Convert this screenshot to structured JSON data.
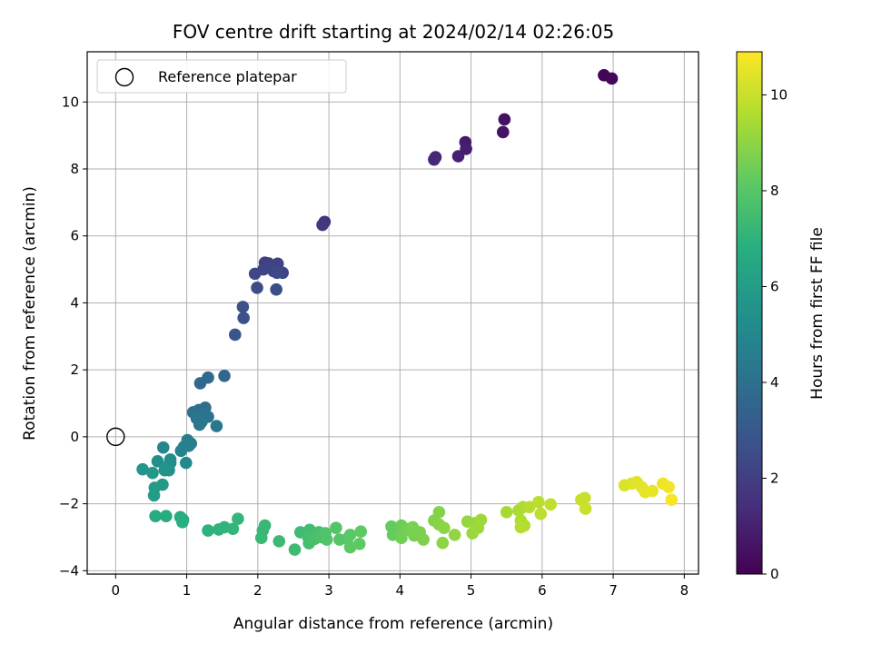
{
  "chart_data": {
    "type": "scatter",
    "title": "FOV centre drift starting at 2024/02/14 02:26:05",
    "xlabel": "Angular distance from reference (arcmin)",
    "ylabel": "Rotation from reference (arcmin)",
    "xlim": [
      -0.4,
      8.2
    ],
    "ylim": [
      -4.1,
      11.5
    ],
    "xticks": [
      0,
      1,
      2,
      3,
      4,
      5,
      6,
      7,
      8
    ],
    "yticks": [
      -4,
      -2,
      0,
      2,
      4,
      6,
      8,
      10
    ],
    "grid": true,
    "legend": {
      "placement": "top-left",
      "entries": [
        "Reference platepar"
      ]
    },
    "reference_point": {
      "name": "Reference platepar",
      "x": 0,
      "y": 0
    },
    "colorbar": {
      "label": "Hours from first FF file",
      "colormap": "viridis",
      "range": [
        0,
        10.9
      ],
      "ticks": [
        0,
        2,
        4,
        6,
        8,
        10
      ]
    },
    "points": [
      {
        "x": 6.87,
        "y": 10.8,
        "c": 0.1
      },
      {
        "x": 6.98,
        "y": 10.7,
        "c": 0.2
      },
      {
        "x": 5.47,
        "y": 9.48,
        "c": 0.5
      },
      {
        "x": 5.45,
        "y": 9.1,
        "c": 0.6
      },
      {
        "x": 4.92,
        "y": 8.8,
        "c": 0.8
      },
      {
        "x": 4.93,
        "y": 8.6,
        "c": 0.9
      },
      {
        "x": 4.82,
        "y": 8.38,
        "c": 1.0
      },
      {
        "x": 4.5,
        "y": 8.35,
        "c": 1.1
      },
      {
        "x": 4.48,
        "y": 8.28,
        "c": 1.2
      },
      {
        "x": 2.94,
        "y": 6.42,
        "c": 1.6
      },
      {
        "x": 2.91,
        "y": 6.33,
        "c": 1.7
      },
      {
        "x": 2.1,
        "y": 5.2,
        "c": 2.0
      },
      {
        "x": 2.15,
        "y": 5.18,
        "c": 2.05
      },
      {
        "x": 2.28,
        "y": 5.17,
        "c": 2.1
      },
      {
        "x": 2.17,
        "y": 5.1,
        "c": 2.15
      },
      {
        "x": 2.08,
        "y": 5.0,
        "c": 2.2
      },
      {
        "x": 2.22,
        "y": 4.95,
        "c": 2.25
      },
      {
        "x": 2.35,
        "y": 4.9,
        "c": 2.3
      },
      {
        "x": 1.96,
        "y": 4.87,
        "c": 2.35
      },
      {
        "x": 2.27,
        "y": 4.9,
        "c": 2.4
      },
      {
        "x": 1.99,
        "y": 4.45,
        "c": 2.5
      },
      {
        "x": 2.26,
        "y": 4.4,
        "c": 2.55
      },
      {
        "x": 1.79,
        "y": 3.88,
        "c": 2.65
      },
      {
        "x": 1.8,
        "y": 3.55,
        "c": 2.7
      },
      {
        "x": 1.68,
        "y": 3.05,
        "c": 2.85
      },
      {
        "x": 1.53,
        "y": 1.82,
        "c": 3.6
      },
      {
        "x": 1.3,
        "y": 1.77,
        "c": 3.65
      },
      {
        "x": 1.19,
        "y": 1.6,
        "c": 3.7
      },
      {
        "x": 1.26,
        "y": 0.87,
        "c": 3.9
      },
      {
        "x": 1.17,
        "y": 0.8,
        "c": 4.0
      },
      {
        "x": 1.09,
        "y": 0.73,
        "c": 4.05
      },
      {
        "x": 1.25,
        "y": 0.68,
        "c": 4.1
      },
      {
        "x": 1.3,
        "y": 0.6,
        "c": 4.15
      },
      {
        "x": 1.14,
        "y": 0.55,
        "c": 4.2
      },
      {
        "x": 1.21,
        "y": 0.45,
        "c": 4.25
      },
      {
        "x": 1.18,
        "y": 0.36,
        "c": 4.3
      },
      {
        "x": 1.42,
        "y": 0.32,
        "c": 4.35
      },
      {
        "x": 1.01,
        "y": -0.1,
        "c": 4.6
      },
      {
        "x": 1.06,
        "y": -0.2,
        "c": 4.65
      },
      {
        "x": 1.03,
        "y": -0.27,
        "c": 4.7
      },
      {
        "x": 0.96,
        "y": -0.3,
        "c": 4.75
      },
      {
        "x": 0.92,
        "y": -0.42,
        "c": 4.85
      },
      {
        "x": 0.67,
        "y": -0.32,
        "c": 5.0
      },
      {
        "x": 0.99,
        "y": -0.78,
        "c": 5.1
      },
      {
        "x": 0.77,
        "y": -0.68,
        "c": 5.2
      },
      {
        "x": 0.77,
        "y": -0.78,
        "c": 5.3
      },
      {
        "x": 0.59,
        "y": -0.73,
        "c": 5.4
      },
      {
        "x": 0.72,
        "y": -0.9,
        "c": 5.5
      },
      {
        "x": 0.75,
        "y": -1.0,
        "c": 5.55
      },
      {
        "x": 0.69,
        "y": -1.0,
        "c": 5.6
      },
      {
        "x": 0.38,
        "y": -0.97,
        "c": 5.7
      },
      {
        "x": 0.52,
        "y": -1.08,
        "c": 5.75
      },
      {
        "x": 0.66,
        "y": -1.43,
        "c": 5.85
      },
      {
        "x": 0.55,
        "y": -1.52,
        "c": 5.9
      },
      {
        "x": 0.54,
        "y": -1.75,
        "c": 6.0
      },
      {
        "x": 0.56,
        "y": -2.37,
        "c": 6.6
      },
      {
        "x": 0.71,
        "y": -2.37,
        "c": 6.65
      },
      {
        "x": 0.91,
        "y": -2.4,
        "c": 6.7
      },
      {
        "x": 0.95,
        "y": -2.48,
        "c": 6.75
      },
      {
        "x": 0.94,
        "y": -2.55,
        "c": 6.8
      },
      {
        "x": 1.3,
        "y": -2.8,
        "c": 6.95
      },
      {
        "x": 1.45,
        "y": -2.77,
        "c": 7.0
      },
      {
        "x": 1.53,
        "y": -2.7,
        "c": 7.05
      },
      {
        "x": 1.65,
        "y": -2.75,
        "c": 7.1
      },
      {
        "x": 1.72,
        "y": -2.45,
        "c": 7.15
      },
      {
        "x": 2.1,
        "y": -2.65,
        "c": 7.2
      },
      {
        "x": 2.07,
        "y": -2.8,
        "c": 7.25
      },
      {
        "x": 2.05,
        "y": -3.02,
        "c": 7.3
      },
      {
        "x": 2.3,
        "y": -3.12,
        "c": 7.35
      },
      {
        "x": 2.52,
        "y": -3.37,
        "c": 7.4
      },
      {
        "x": 2.6,
        "y": -2.85,
        "c": 7.45
      },
      {
        "x": 2.73,
        "y": -2.78,
        "c": 7.5
      },
      {
        "x": 2.71,
        "y": -3.0,
        "c": 7.55
      },
      {
        "x": 2.72,
        "y": -3.18,
        "c": 7.6
      },
      {
        "x": 2.86,
        "y": -2.85,
        "c": 7.65
      },
      {
        "x": 2.8,
        "y": -3.05,
        "c": 7.7
      },
      {
        "x": 2.9,
        "y": -3.0,
        "c": 7.75
      },
      {
        "x": 2.95,
        "y": -2.88,
        "c": 7.8
      },
      {
        "x": 2.97,
        "y": -3.07,
        "c": 7.85
      },
      {
        "x": 3.1,
        "y": -2.72,
        "c": 7.9
      },
      {
        "x": 3.15,
        "y": -3.07,
        "c": 7.95
      },
      {
        "x": 3.26,
        "y": -3.05,
        "c": 8.0
      },
      {
        "x": 3.3,
        "y": -2.93,
        "c": 8.05
      },
      {
        "x": 3.3,
        "y": -3.3,
        "c": 8.1
      },
      {
        "x": 3.43,
        "y": -3.2,
        "c": 8.15
      },
      {
        "x": 3.45,
        "y": -2.83,
        "c": 8.2
      },
      {
        "x": 3.88,
        "y": -2.68,
        "c": 8.25
      },
      {
        "x": 3.9,
        "y": -2.93,
        "c": 8.3
      },
      {
        "x": 4.0,
        "y": -2.73,
        "c": 8.35
      },
      {
        "x": 4.02,
        "y": -2.65,
        "c": 8.4
      },
      {
        "x": 4.06,
        "y": -2.8,
        "c": 8.45
      },
      {
        "x": 4.02,
        "y": -3.02,
        "c": 8.5
      },
      {
        "x": 4.12,
        "y": -2.75,
        "c": 8.55
      },
      {
        "x": 4.2,
        "y": -2.95,
        "c": 8.6
      },
      {
        "x": 4.18,
        "y": -2.7,
        "c": 8.65
      },
      {
        "x": 4.28,
        "y": -2.85,
        "c": 8.7
      },
      {
        "x": 4.33,
        "y": -3.07,
        "c": 8.75
      },
      {
        "x": 4.48,
        "y": -2.5,
        "c": 8.8
      },
      {
        "x": 4.55,
        "y": -2.25,
        "c": 8.85
      },
      {
        "x": 4.55,
        "y": -2.62,
        "c": 8.9
      },
      {
        "x": 4.62,
        "y": -2.72,
        "c": 8.95
      },
      {
        "x": 4.6,
        "y": -3.17,
        "c": 9.0
      },
      {
        "x": 4.77,
        "y": -2.93,
        "c": 9.05
      },
      {
        "x": 4.95,
        "y": -2.53,
        "c": 9.1
      },
      {
        "x": 5.05,
        "y": -2.58,
        "c": 9.15
      },
      {
        "x": 5.02,
        "y": -2.88,
        "c": 9.2
      },
      {
        "x": 5.1,
        "y": -2.72,
        "c": 9.25
      },
      {
        "x": 5.14,
        "y": -2.48,
        "c": 9.3
      },
      {
        "x": 5.5,
        "y": -2.25,
        "c": 9.4
      },
      {
        "x": 5.67,
        "y": -2.2,
        "c": 9.45
      },
      {
        "x": 5.73,
        "y": -2.1,
        "c": 9.5
      },
      {
        "x": 5.7,
        "y": -2.5,
        "c": 9.55
      },
      {
        "x": 5.75,
        "y": -2.65,
        "c": 9.6
      },
      {
        "x": 5.7,
        "y": -2.7,
        "c": 9.65
      },
      {
        "x": 5.82,
        "y": -2.1,
        "c": 9.7
      },
      {
        "x": 5.95,
        "y": -1.95,
        "c": 9.75
      },
      {
        "x": 5.98,
        "y": -2.3,
        "c": 9.8
      },
      {
        "x": 6.12,
        "y": -2.02,
        "c": 9.85
      },
      {
        "x": 6.55,
        "y": -1.88,
        "c": 9.95
      },
      {
        "x": 6.6,
        "y": -1.83,
        "c": 10.0
      },
      {
        "x": 6.61,
        "y": -2.15,
        "c": 10.05
      },
      {
        "x": 7.16,
        "y": -1.45,
        "c": 10.3
      },
      {
        "x": 7.26,
        "y": -1.4,
        "c": 10.35
      },
      {
        "x": 7.33,
        "y": -1.35,
        "c": 10.4
      },
      {
        "x": 7.4,
        "y": -1.5,
        "c": 10.45
      },
      {
        "x": 7.45,
        "y": -1.65,
        "c": 10.5
      },
      {
        "x": 7.55,
        "y": -1.62,
        "c": 10.55
      },
      {
        "x": 7.7,
        "y": -1.4,
        "c": 10.65
      },
      {
        "x": 7.78,
        "y": -1.5,
        "c": 10.7
      },
      {
        "x": 7.82,
        "y": -1.88,
        "c": 10.8
      }
    ]
  }
}
